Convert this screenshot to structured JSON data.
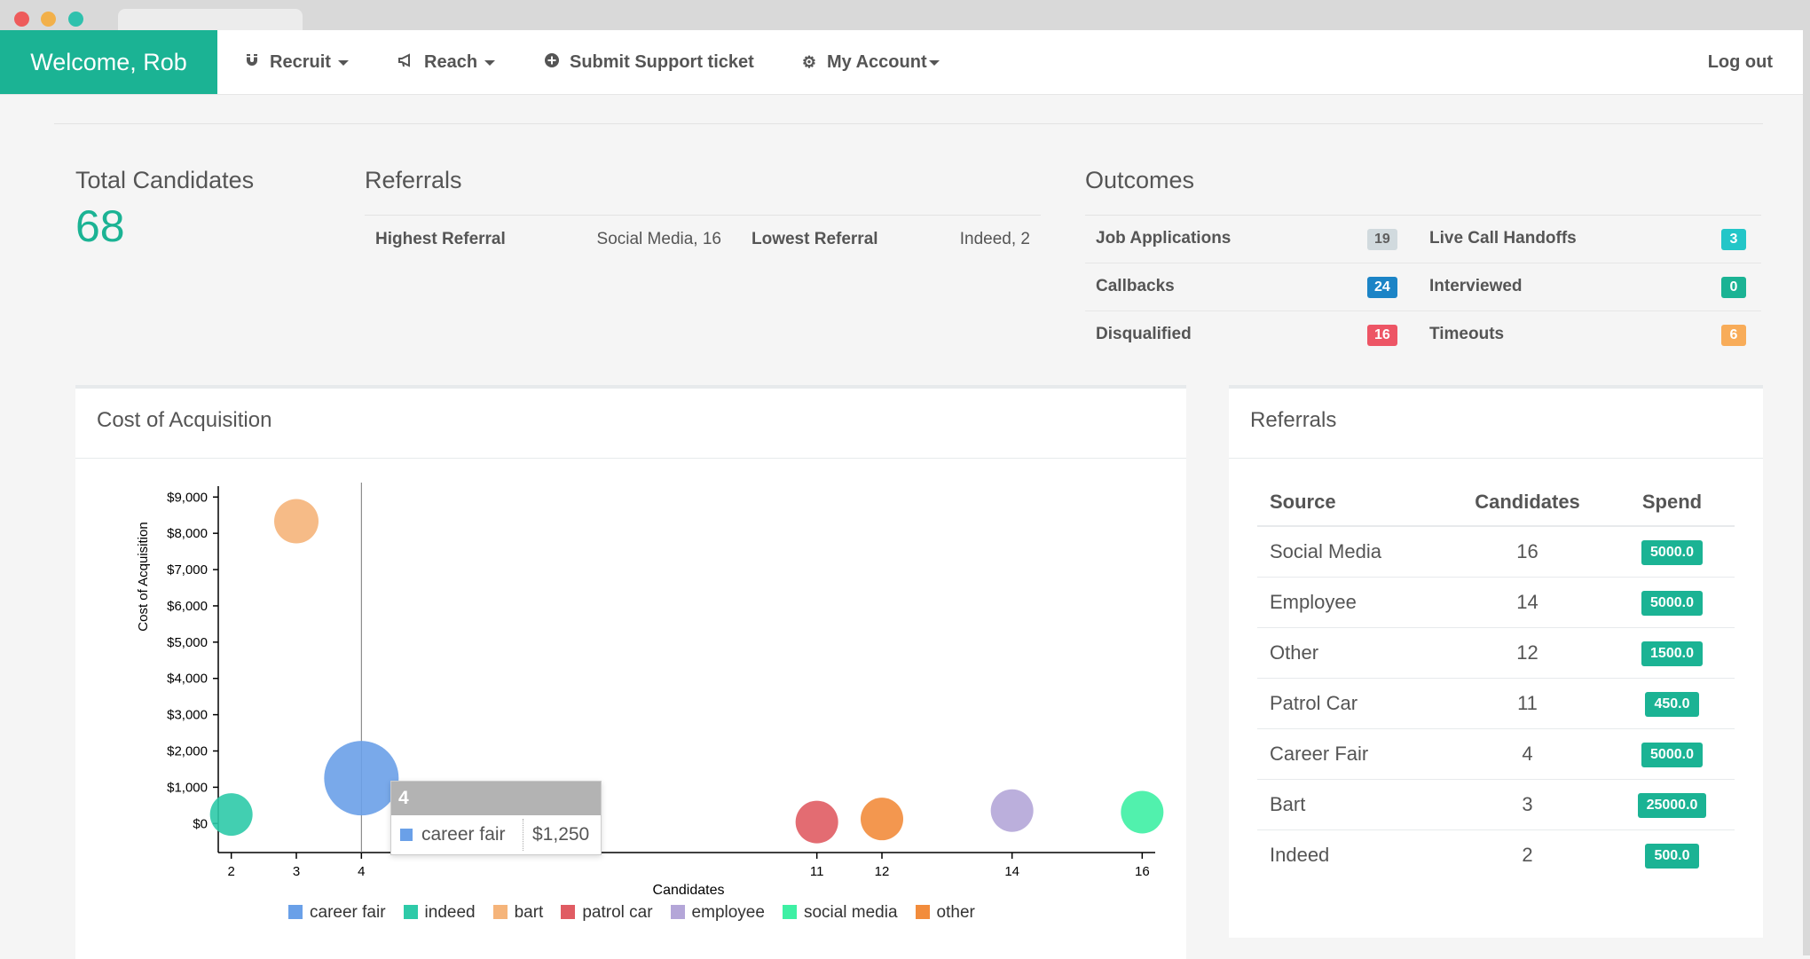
{
  "nav": {
    "brand": "Welcome, Rob",
    "items": [
      {
        "label": "Recruit",
        "icon": "magnet-icon",
        "dropdown": true
      },
      {
        "label": "Reach",
        "icon": "megaphone-icon",
        "dropdown": true
      },
      {
        "label": "Submit Support ticket",
        "icon": "plus-circle-icon",
        "dropdown": false
      },
      {
        "label": "My Account",
        "icon": "gear-icon",
        "dropdown": true
      }
    ],
    "logout": "Log out"
  },
  "stats": {
    "total_title": "Total Candidates",
    "total_value": "68",
    "referrals_title": "Referrals",
    "highest_label": "Highest Referral",
    "highest_value": "Social Media, 16",
    "lowest_label": "Lowest Referral",
    "lowest_value": "Indeed, 2",
    "outcomes_title": "Outcomes",
    "outcomes": [
      {
        "label": "Job Applications",
        "value": "19",
        "color": "#d1dade",
        "text_color": "#5e5e5e"
      },
      {
        "label": "Live Call Handoffs",
        "value": "3",
        "color": "#23c6c8",
        "text_color": "#ffffff"
      },
      {
        "label": "Callbacks",
        "value": "24",
        "color": "#1c84c6",
        "text_color": "#ffffff"
      },
      {
        "label": "Interviewed",
        "value": "0",
        "color": "#1bb394",
        "text_color": "#ffffff"
      },
      {
        "label": "Disqualified",
        "value": "16",
        "color": "#ed5565",
        "text_color": "#ffffff"
      },
      {
        "label": "Timeouts",
        "value": "6",
        "color": "#f8ac59",
        "text_color": "#ffffff"
      }
    ]
  },
  "coa_panel": {
    "title": "Cost of Acquisition",
    "tooltip": {
      "header": "4",
      "label": "career fair",
      "value": "$1,250"
    }
  },
  "chart_data": {
    "type": "scatter",
    "title": "",
    "xlabel": "Candidates",
    "ylabel": "Cost of Acquisition",
    "x_ticks": [
      2,
      3,
      4,
      11,
      12,
      14,
      16
    ],
    "y_ticks": [
      0,
      1000,
      2000,
      3000,
      4000,
      5000,
      6000,
      7000,
      8000,
      9000
    ],
    "y_tick_labels": [
      "$0",
      "$1,000",
      "$2,000",
      "$3,000",
      "$4,000",
      "$5,000",
      "$6,000",
      "$7,000",
      "$8,000",
      "$9,000"
    ],
    "xlim": [
      1.8,
      16.2
    ],
    "ylim": [
      -800,
      9300
    ],
    "legend_position": "bottom",
    "series": [
      {
        "name": "career fair",
        "color": "#6aa0e8",
        "x": 4,
        "y": 1250,
        "size": 5000
      },
      {
        "name": "indeed",
        "color": "#2ecaa8",
        "x": 2,
        "y": 250,
        "size": 500
      },
      {
        "name": "bart",
        "color": "#f5b47a",
        "x": 3,
        "y": 8333,
        "size": 25000
      },
      {
        "name": "patrol car",
        "color": "#e05c63",
        "x": 11,
        "y": 41,
        "size": 450
      },
      {
        "name": "employee",
        "color": "#b4a6d8",
        "x": 14,
        "y": 357,
        "size": 5000
      },
      {
        "name": "social media",
        "color": "#3ef0a4",
        "x": 16,
        "y": 313,
        "size": 5000
      },
      {
        "name": "other",
        "color": "#f28c3c",
        "x": 12,
        "y": 125,
        "size": 1500
      }
    ]
  },
  "referrals_panel": {
    "title": "Referrals",
    "headers": [
      "Source",
      "Candidates",
      "Spend"
    ],
    "rows": [
      {
        "source": "Social Media",
        "candidates": "16",
        "spend": "5000.0"
      },
      {
        "source": "Employee",
        "candidates": "14",
        "spend": "5000.0"
      },
      {
        "source": "Other",
        "candidates": "12",
        "spend": "1500.0"
      },
      {
        "source": "Patrol Car",
        "candidates": "11",
        "spend": "450.0"
      },
      {
        "source": "Career Fair",
        "candidates": "4",
        "spend": "5000.0"
      },
      {
        "source": "Bart",
        "candidates": "3",
        "spend": "25000.0"
      },
      {
        "source": "Indeed",
        "candidates": "2",
        "spend": "500.0"
      }
    ]
  }
}
